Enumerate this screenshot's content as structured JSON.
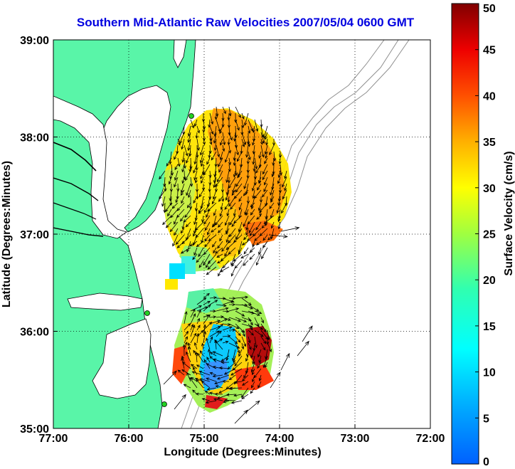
{
  "title": "Southern Mid-Atlantic Raw Velocities 2007/05/04 0600 GMT",
  "map": {
    "xlabel": "Longitude (Degrees:Minutes)",
    "ylabel": "Latitude (Degrees:Minutes)",
    "x_ticks": [
      "77:00",
      "76:00",
      "75:00",
      "74:00",
      "73:00",
      "72:00"
    ],
    "y_ticks": [
      "39:00",
      "38:00",
      "37:00",
      "36:00",
      "35:00"
    ],
    "x_range": [
      -77,
      -72
    ],
    "y_range": [
      35,
      39
    ],
    "colors": {
      "land": "#59f5a8",
      "water": "#ffffff",
      "grid": "#000000",
      "bathymetry": "#909090",
      "site_marker": "#22d022"
    }
  },
  "colorbar": {
    "label": "Surface Velocity (cm/s)",
    "ticks": [
      "0",
      "5",
      "10",
      "15",
      "20",
      "25",
      "30",
      "35",
      "40",
      "45",
      "50"
    ],
    "range": [
      0,
      50
    ],
    "colormap": "jet"
  }
}
